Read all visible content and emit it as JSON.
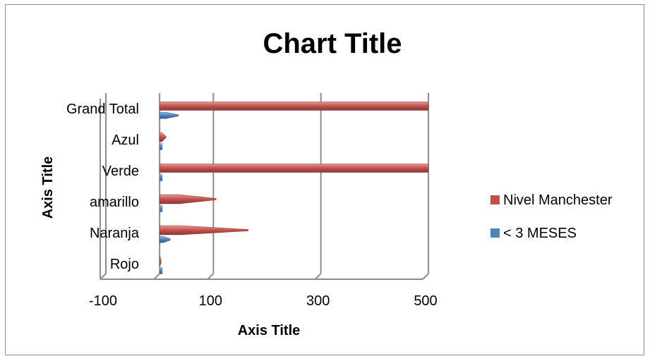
{
  "chart_data": {
    "type": "bar",
    "orientation": "horizontal",
    "title": "Chart Title",
    "xlabel": "Axis Title",
    "ylabel": "Axis Title",
    "categories": [
      "Rojo",
      "Naranja",
      "amarillo",
      "Verde",
      "Azul",
      "Grand Total"
    ],
    "series": [
      {
        "name": "Nivel Manchester",
        "values": [
          3,
          165,
          105,
          500,
          12,
          500
        ],
        "color": "#c0504d"
      },
      {
        "name": "< 3 MESES",
        "values": [
          1,
          20,
          3,
          5,
          2,
          35
        ],
        "color": "#4f81bd"
      }
    ],
    "x_ticks": [
      "-100",
      "100",
      "300",
      "500"
    ],
    "xlim": [
      -100,
      500
    ],
    "grid": true,
    "legend": "right"
  }
}
